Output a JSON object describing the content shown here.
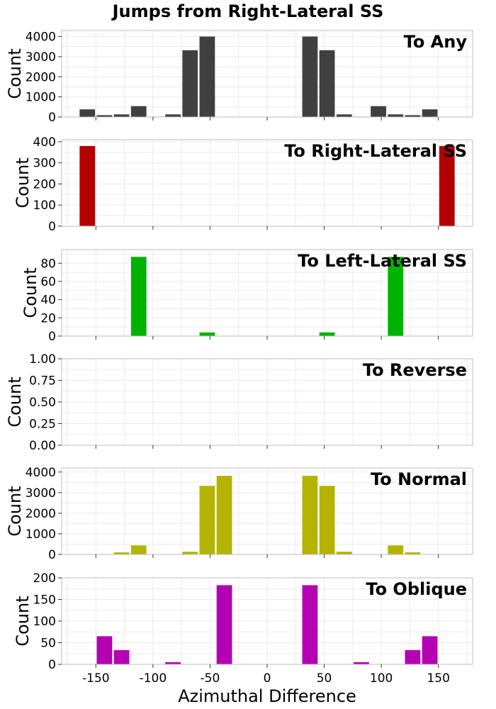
{
  "figure": {
    "title": "Jumps from Right-Lateral SS",
    "xlabel": "Azimuthal Difference"
  },
  "chart_data": [
    {
      "type": "bar",
      "label": "To Any",
      "color": "#404040",
      "ylabel": "Count",
      "xlim": [
        -180,
        180
      ],
      "ylim": [
        0,
        4300
      ],
      "xticks": [
        -150,
        -100,
        -50,
        0,
        50,
        100,
        150
      ],
      "yticks": [
        0,
        1000,
        2000,
        3000,
        4000
      ],
      "bin_width": 15,
      "grid": true,
      "x": [
        -157.5,
        -142.5,
        -127.5,
        -112.5,
        -97.5,
        -82.5,
        -67.5,
        -52.5,
        -37.5,
        -22.5,
        -7.5,
        7.5,
        22.5,
        37.5,
        52.5,
        67.5,
        82.5,
        97.5,
        112.5,
        127.5,
        142.5,
        157.5
      ],
      "values": [
        380,
        90,
        130,
        540,
        20,
        130,
        3320,
        4000,
        0,
        0,
        0,
        0,
        0,
        4000,
        3320,
        130,
        20,
        540,
        130,
        90,
        380,
        0
      ]
    },
    {
      "type": "bar",
      "label": "To Right-Lateral SS",
      "color": "#b30000",
      "ylabel": "Count",
      "xlim": [
        -180,
        180
      ],
      "ylim": [
        0,
        410
      ],
      "xticks": [
        -150,
        -100,
        -50,
        0,
        50,
        100,
        150
      ],
      "yticks": [
        0,
        100,
        200,
        300,
        400
      ],
      "bin_width": 15,
      "grid": true,
      "x": [
        -157.5,
        157.5
      ],
      "values": [
        380,
        380
      ]
    },
    {
      "type": "bar",
      "label": "To Left-Lateral SS",
      "color": "#00b300",
      "ylabel": "Count",
      "xlim": [
        -180,
        180
      ],
      "ylim": [
        0,
        95
      ],
      "xticks": [
        -150,
        -100,
        -50,
        0,
        50,
        100,
        150
      ],
      "yticks": [
        0,
        20,
        40,
        60,
        80
      ],
      "bin_width": 15,
      "grid": true,
      "x": [
        -112.5,
        -52.5,
        52.5,
        112.5
      ],
      "values": [
        87,
        4,
        4,
        87
      ]
    },
    {
      "type": "bar",
      "label": "To Reverse",
      "color": "#0000b3",
      "ylabel": "Count",
      "xlim": [
        -180,
        180
      ],
      "ylim": [
        0,
        1
      ],
      "xticks": [
        -150,
        -100,
        -50,
        0,
        50,
        100,
        150
      ],
      "yticks": [
        0.0,
        0.25,
        0.5,
        0.75,
        1.0
      ],
      "ytick_labels": [
        "0.00",
        "0.25",
        "0.50",
        "0.75",
        "1.00"
      ],
      "bin_width": 15,
      "grid": true,
      "x": [],
      "values": []
    },
    {
      "type": "bar",
      "label": "To Normal",
      "color": "#b3b300",
      "ylabel": "Count",
      "xlim": [
        -180,
        180
      ],
      "ylim": [
        0,
        4200
      ],
      "xticks": [
        -150,
        -100,
        -50,
        0,
        50,
        100,
        150
      ],
      "yticks": [
        0,
        1000,
        2000,
        3000,
        4000
      ],
      "bin_width": 15,
      "grid": true,
      "x": [
        -127.5,
        -112.5,
        -67.5,
        -52.5,
        -37.5,
        37.5,
        52.5,
        67.5,
        112.5,
        127.5
      ],
      "values": [
        100,
        440,
        130,
        3330,
        3820,
        3820,
        3330,
        130,
        440,
        100
      ]
    },
    {
      "type": "bar",
      "label": "To Oblique",
      "color": "#b300b3",
      "ylabel": "Count",
      "xlim": [
        -180,
        180
      ],
      "ylim": [
        0,
        200
      ],
      "xticks": [
        -150,
        -100,
        -50,
        0,
        50,
        100,
        150
      ],
      "yticks": [
        0,
        50,
        100,
        150,
        200
      ],
      "bin_width": 15,
      "grid": true,
      "x": [
        -142.5,
        -127.5,
        -82.5,
        -37.5,
        37.5,
        82.5,
        127.5,
        142.5
      ],
      "values": [
        65,
        33,
        5,
        183,
        183,
        5,
        33,
        65
      ]
    }
  ]
}
